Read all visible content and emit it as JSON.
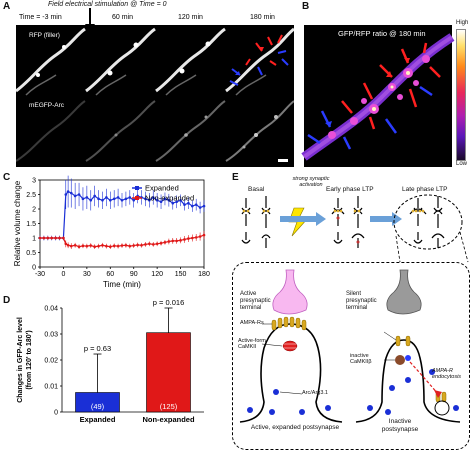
{
  "panel_a": {
    "label": "A",
    "stim_note": "Field electrical stimulation @ Time = 0",
    "times": [
      "Time = -3 min",
      "60 min",
      "120 min",
      "180 min"
    ],
    "row1_label": "RFP (filler)",
    "row2_label": "mEGFP-Arc"
  },
  "panel_b": {
    "label": "B",
    "title": "GFP/RFP ratio @ 180 min",
    "scale_high": "High",
    "scale_low": "Low"
  },
  "panel_c": {
    "label": "C",
    "colors": {
      "expanded": "#1a2fd6",
      "non_expanded": "#e01818"
    }
  },
  "panel_d": {
    "label": "D",
    "colors": {
      "expanded": "#1a2fd6",
      "non_expanded": "#e01818"
    }
  },
  "panel_e": {
    "label": "E",
    "stage_basal": "Basal",
    "stim_note": "strong synaptic activation",
    "stage_early": "Early phase LTP",
    "stage_late": "Late phase LTP",
    "active_terminal": "Active presynaptic terminal",
    "silent_terminal": "Silent presynaptic terminal",
    "ampa": "AMPA-Rs",
    "active_camkii": "Active-form CaMKII",
    "inactive_camkii": "inactive CaMKIIβ",
    "arc": "Arc/Arg3.1",
    "endocytosis": "AMPA-R endocytosis",
    "active_post": "Active, expanded postsynapse",
    "inactive_post": "Inactive postsynapse"
  },
  "chart_data": [
    {
      "type": "line",
      "panel": "C",
      "xlabel": "Time (min)",
      "ylabel": "Relative volume change",
      "xlim": [
        -30,
        180
      ],
      "ylim": [
        0,
        3
      ],
      "xticks": [
        -30,
        0,
        30,
        60,
        90,
        120,
        150,
        180
      ],
      "yticks": [
        0,
        0.5,
        1,
        1.5,
        2,
        2.5,
        3
      ],
      "legend": "top-right",
      "series": [
        {
          "name": "Expanded",
          "color": "#1a2fd6",
          "x": [
            -30,
            -25,
            -20,
            -15,
            -10,
            -5,
            0,
            3,
            6,
            10,
            15,
            20,
            25,
            30,
            35,
            40,
            45,
            50,
            55,
            60,
            65,
            70,
            75,
            80,
            85,
            90,
            95,
            100,
            105,
            110,
            115,
            120,
            125,
            130,
            135,
            140,
            145,
            150,
            155,
            160,
            165,
            170,
            175,
            180
          ],
          "y": [
            1.0,
            1.0,
            1.0,
            1.0,
            1.0,
            1.0,
            1.0,
            2.5,
            2.6,
            2.55,
            2.45,
            2.5,
            2.35,
            2.4,
            2.3,
            2.45,
            2.35,
            2.3,
            2.4,
            2.3,
            2.35,
            2.4,
            2.3,
            2.35,
            2.4,
            2.3,
            2.45,
            2.4,
            2.35,
            2.3,
            2.4,
            2.3,
            2.25,
            2.35,
            2.3,
            2.2,
            2.25,
            2.3,
            2.15,
            2.2,
            2.1,
            2.15,
            2.05,
            2.1
          ],
          "err": [
            0.08,
            0.08,
            0.08,
            0.08,
            0.08,
            0.08,
            0.08,
            0.5,
            0.55,
            0.5,
            0.45,
            0.4,
            0.4,
            0.4,
            0.35,
            0.35,
            0.3,
            0.3,
            0.3,
            0.3,
            0.3,
            0.3,
            0.25,
            0.25,
            0.25,
            0.25,
            0.25,
            0.25,
            0.25,
            0.25,
            0.25,
            0.25,
            0.25,
            0.22,
            0.22,
            0.22,
            0.22,
            0.2,
            0.2,
            0.2,
            0.2,
            0.2,
            0.2,
            0.2
          ]
        },
        {
          "name": "Non-expanded",
          "color": "#e01818",
          "x": [
            -30,
            -25,
            -20,
            -15,
            -10,
            -5,
            0,
            3,
            6,
            10,
            15,
            20,
            25,
            30,
            35,
            40,
            45,
            50,
            55,
            60,
            65,
            70,
            75,
            80,
            85,
            90,
            95,
            100,
            105,
            110,
            115,
            120,
            125,
            130,
            135,
            140,
            145,
            150,
            155,
            160,
            165,
            170,
            175,
            180
          ],
          "y": [
            1.0,
            1.0,
            1.0,
            1.0,
            1.0,
            1.0,
            1.0,
            0.8,
            0.75,
            0.72,
            0.75,
            0.7,
            0.73,
            0.72,
            0.74,
            0.7,
            0.72,
            0.75,
            0.72,
            0.7,
            0.73,
            0.72,
            0.74,
            0.75,
            0.72,
            0.74,
            0.76,
            0.75,
            0.78,
            0.8,
            0.78,
            0.8,
            0.82,
            0.85,
            0.88,
            0.9,
            0.9,
            0.92,
            0.95,
            0.98,
            1.0,
            1.02,
            1.05,
            1.1
          ],
          "err": [
            0.06,
            0.06,
            0.06,
            0.06,
            0.06,
            0.06,
            0.06,
            0.12,
            0.1,
            0.1,
            0.08,
            0.08,
            0.08,
            0.08,
            0.08,
            0.08,
            0.08,
            0.08,
            0.08,
            0.08,
            0.08,
            0.08,
            0.08,
            0.08,
            0.08,
            0.08,
            0.08,
            0.08,
            0.08,
            0.08,
            0.08,
            0.08,
            0.08,
            0.08,
            0.1,
            0.1,
            0.1,
            0.1,
            0.12,
            0.12,
            0.12,
            0.12,
            0.14,
            0.14
          ]
        }
      ]
    },
    {
      "type": "bar",
      "panel": "D",
      "ylabel": "Changes in GFP-Arc level (from 120' to 180')",
      "ylim": [
        0,
        0.04
      ],
      "yticks": [
        0,
        0.01,
        0.02,
        0.03,
        0.04
      ],
      "categories": [
        "Expanded",
        "Non-expanded"
      ],
      "values": [
        0.0075,
        0.0305
      ],
      "errors": [
        0.0148,
        0.0095
      ],
      "n_labels": [
        "(49)",
        "(125)"
      ],
      "p_labels": [
        "p = 0.63",
        "p = 0.016"
      ]
    }
  ]
}
